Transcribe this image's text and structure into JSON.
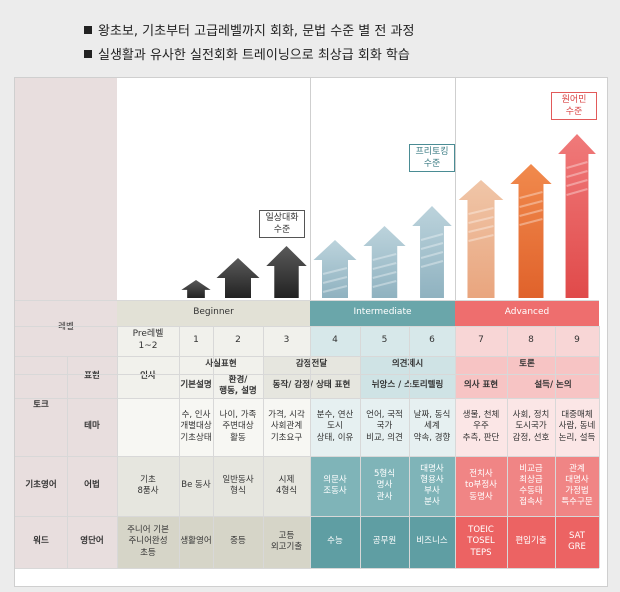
{
  "bullets": [
    "왕초보, 기초부터 고급레벨까지 회화, 문법 수준 별 전 과정",
    "실생활과 유사한 실전회화 트레이닝으로 최상급 회화 학습"
  ],
  "callouts": {
    "daily": "일상대화\n수준",
    "freetalking": "프리토킹\n수준",
    "native": "원어민\n수준"
  },
  "colors": {
    "beginner": "#e2e1d6",
    "intermediate": "#6aa6aa",
    "advanced": "#ee6e6e",
    "left_label": "#e8dede",
    "arrow_dark": "#2b2b2b",
    "arrow_teal": "#a5c4cf",
    "arrow_salmon": "#e67a53"
  },
  "row_labels": {
    "level": "레벨",
    "talk": "토크",
    "expression": "표현",
    "theme": "테마",
    "basic_english": "기초영어",
    "grammar": "어법",
    "words": "워드",
    "vocabulary": "영단어"
  },
  "bands": {
    "beginner": "Beginner",
    "intermediate": "Intermediate",
    "advanced": "Advanced"
  },
  "levels": [
    "Pre레벨\n1~2",
    "1",
    "2",
    "3",
    "4",
    "5",
    "6",
    "7",
    "8",
    "9"
  ],
  "expression": {
    "greeting": "인사",
    "fact_group": "사실표현",
    "emotion_group": "감정전달",
    "opinion_group": "의견제시",
    "debate_group": "토론",
    "basic_desc": "기본설명",
    "env_desc": "환경/\n행동, 설명",
    "action_emotion": "동작/ 감정/ 상태 표현",
    "nuance_story": "뉘앙스 / 스토리텔링",
    "opinion_expr": "의사 표현",
    "persuasion": "설득/ 논의"
  },
  "theme": [
    "",
    "수, 인사\n개별대상\n기초상태",
    "나이, 가족\n주변대상\n활동",
    "가격, 시각\n사회관계\n기초요구",
    "분수, 연산\n도시\n상태, 이유",
    "언어, 국적\n국가\n비교, 의견",
    "날짜, 동식\n세계\n약속, 경향",
    "생물, 천체\n우주\n추측, 판단",
    "사회, 정치\n도시국가\n감정, 선호",
    "대중매체\n사람, 동네\n논리, 설득"
  ],
  "grammar": [
    "기초\n8품사",
    "Be 동사",
    "일반동사\n형식",
    "시제\n4형식",
    "의문사\n조동사",
    "5형식\n명사\n관사",
    "대명사\n형용사\n부사\n분사",
    "전치사\nto부정사\n동명사",
    "비교급\n최상급\n수동태\n접속사",
    "관계\n대명사\n가정법\n특수구문"
  ],
  "vocab": {
    "c0": "주니어 기본\n주니어완성\n초등",
    "c1": "생활영어",
    "c2": "중등",
    "c3": "고등\n외고기출",
    "c4": "수능",
    "c5": "공무원",
    "c6": "비즈니스",
    "c7": "TOEIC\nTOSEL\nTEPS",
    "c8": "편입기출",
    "c9": "SAT\nGRE"
  }
}
